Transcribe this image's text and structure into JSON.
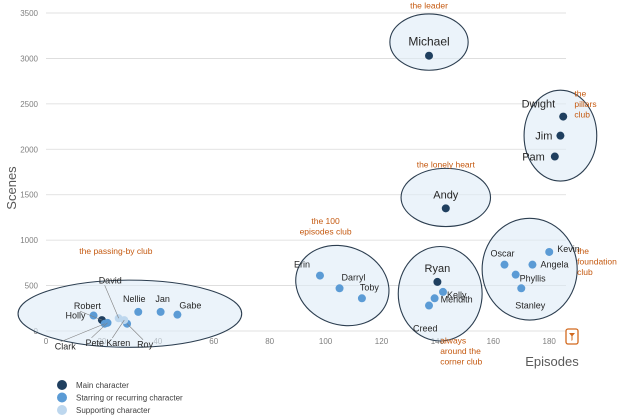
{
  "chart_data": {
    "type": "scatter",
    "xlabel": "Episodes",
    "ylabel": "Scenes",
    "xlim": [
      0,
      186
    ],
    "ylim": [
      0,
      3500
    ],
    "x_ticks": [
      "0",
      "20",
      "40",
      "60",
      "80",
      "100",
      "120",
      "140",
      "160",
      "180"
    ],
    "y_ticks": [
      "0",
      "500",
      "1000",
      "1500",
      "2000",
      "2500",
      "3000",
      "3500"
    ],
    "series": [
      {
        "name": "Main character",
        "color": "#1f3f5f",
        "points": [
          {
            "label": "Michael",
            "x": 137,
            "y": 3030
          },
          {
            "label": "Dwight",
            "x": 185,
            "y": 2360
          },
          {
            "label": "Jim",
            "x": 184,
            "y": 2150
          },
          {
            "label": "Pam",
            "x": 182,
            "y": 1920
          },
          {
            "label": "Andy",
            "x": 143,
            "y": 1350
          },
          {
            "label": "Ryan",
            "x": 140,
            "y": 540
          },
          {
            "label": "Robert",
            "x": 20,
            "y": 120
          }
        ]
      },
      {
        "name": "Starring or recurring  character",
        "color": "#5b9bd5",
        "points": [
          {
            "label": "Erin",
            "x": 98,
            "y": 610
          },
          {
            "label": "Darryl",
            "x": 105,
            "y": 470
          },
          {
            "label": "Toby",
            "x": 113,
            "y": 360
          },
          {
            "label": "Kelly",
            "x": 142,
            "y": 430
          },
          {
            "label": "Meridith",
            "x": 139,
            "y": 360
          },
          {
            "label": "Creed",
            "x": 137,
            "y": 280
          },
          {
            "label": "Oscar",
            "x": 164,
            "y": 730
          },
          {
            "label": "Kevin",
            "x": 180,
            "y": 870
          },
          {
            "label": "Angela",
            "x": 174,
            "y": 730
          },
          {
            "label": "Phyllis",
            "x": 168,
            "y": 620
          },
          {
            "label": "Stanley",
            "x": 170,
            "y": 470
          },
          {
            "label": "Holly",
            "x": 17,
            "y": 170
          },
          {
            "label": "Nellie",
            "x": 33,
            "y": 210
          },
          {
            "label": "Jan",
            "x": 41,
            "y": 210
          },
          {
            "label": "Gabe",
            "x": 47,
            "y": 180
          },
          {
            "label": "Clark",
            "x": 21,
            "y": 80
          },
          {
            "label": "Pete",
            "x": 22,
            "y": 90
          },
          {
            "label": "Roy",
            "x": 29,
            "y": 80
          }
        ]
      },
      {
        "name": "Supporting character",
        "color": "#bdd7ee",
        "points": [
          {
            "label": "David",
            "x": 26,
            "y": 140
          },
          {
            "label": "Karen",
            "x": 28,
            "y": 120
          }
        ]
      }
    ],
    "groups": [
      {
        "label": "the leader"
      },
      {
        "label": "the\npillars\nclub"
      },
      {
        "label": "the lonely heart"
      },
      {
        "label": "the 100\nepisodes club"
      },
      {
        "label": "always\naround the\ncorner club"
      },
      {
        "label": "the\nfoundation\nclub"
      },
      {
        "label": "the passing-by club"
      }
    ],
    "grid": true,
    "legend_position": "bottom-left"
  }
}
